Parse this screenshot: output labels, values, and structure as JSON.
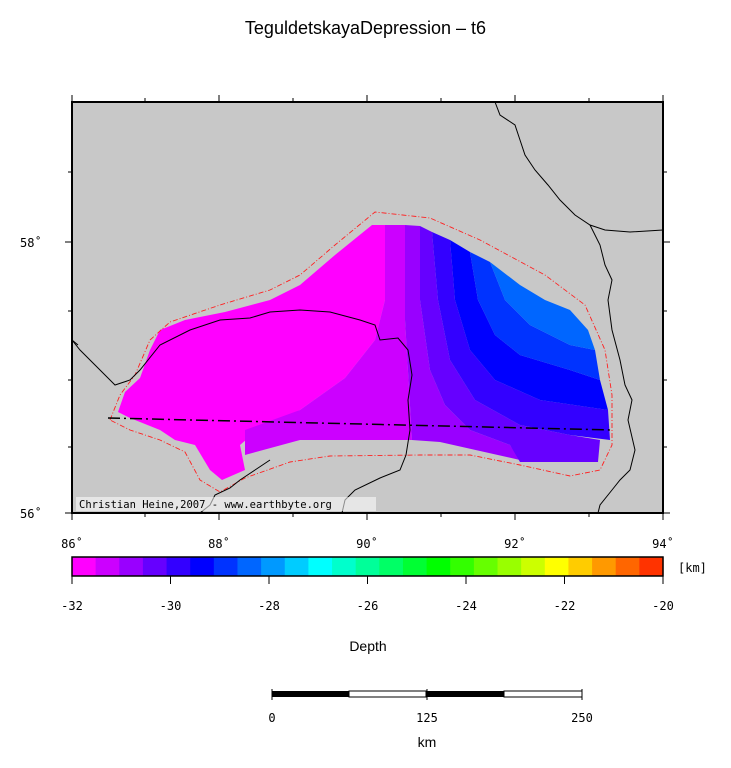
{
  "title": "TeguldetskayaDepression – t6",
  "map": {
    "lat_labels": [
      "58˚",
      "56˚"
    ],
    "lon_labels": [
      "86˚",
      "88˚",
      "90˚",
      "92˚",
      "94˚"
    ],
    "credit": "Christian Heine,2007 - www.earthbyte.org",
    "colors": {
      "background": "#c8c8c8",
      "outline": "#ff2020",
      "border": "#000000"
    }
  },
  "colorbar": {
    "unit": "[km]",
    "ticks": [
      "-32",
      "-30",
      "-28",
      "-26",
      "-24",
      "-22",
      "-20"
    ],
    "label": "Depth",
    "colors": [
      "#ff00ff",
      "#cc00ff",
      "#9900ff",
      "#6600ff",
      "#3300ff",
      "#0000ff",
      "#0033ff",
      "#0066ff",
      "#0099ff",
      "#00ccff",
      "#00ffff",
      "#00ffcc",
      "#00ff99",
      "#00ff66",
      "#00ff33",
      "#00ff00",
      "#33ff00",
      "#66ff00",
      "#99ff00",
      "#ccff00",
      "#ffff00",
      "#ffcc00",
      "#ff9900",
      "#ff6600",
      "#ff3300"
    ]
  },
  "scalebar": {
    "ticks": [
      "0",
      "125",
      "250"
    ],
    "label": "km"
  }
}
